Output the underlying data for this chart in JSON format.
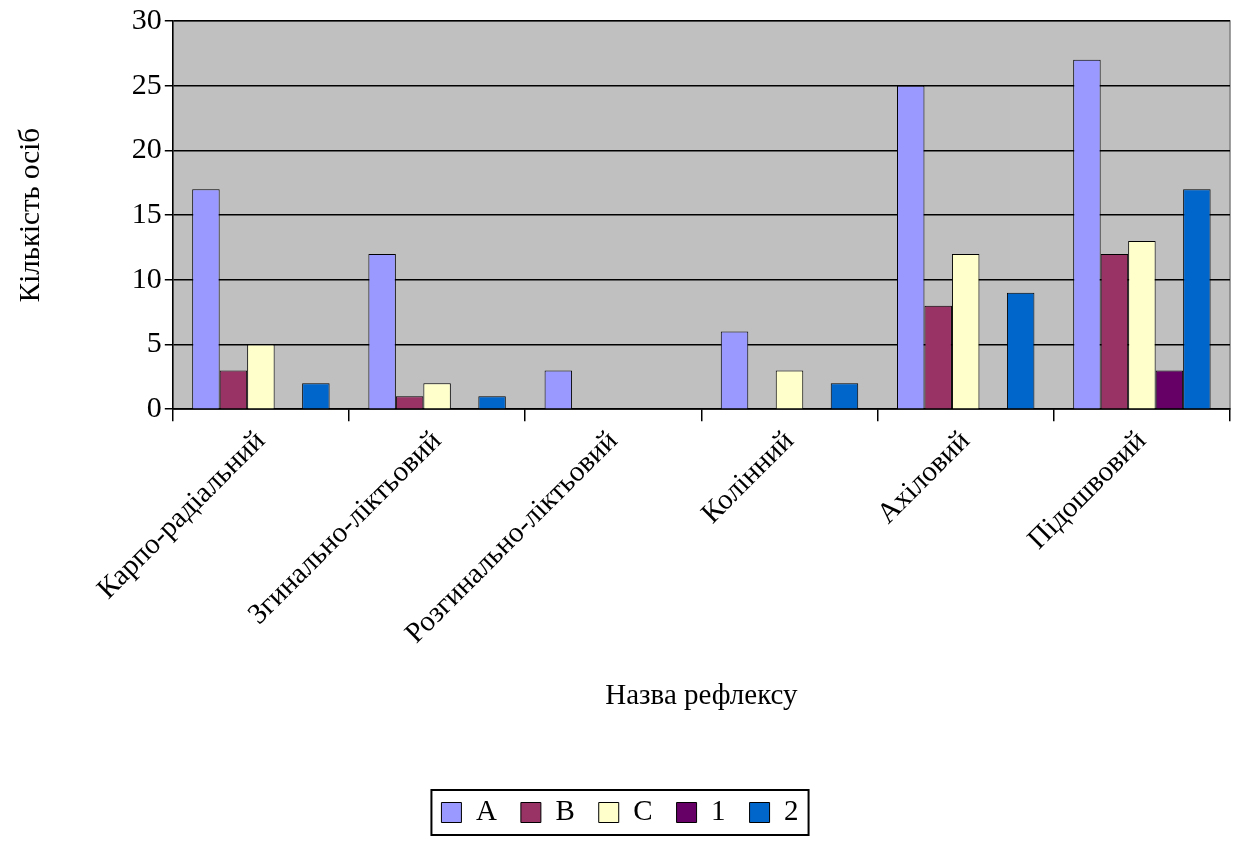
{
  "chart_data": {
    "type": "bar",
    "xlabel": "Назва рефлексу",
    "ylabel": "Кількість осіб",
    "categories": [
      "Карпо-радіальний",
      "Згинально-ліктьовий",
      "Розгинально-ліктьовий",
      "Колінний",
      "Ахіловий",
      "Підошвовий"
    ],
    "series": [
      {
        "name": "A",
        "color": "#9999ff",
        "values": [
          17,
          12,
          3,
          6,
          25,
          27
        ]
      },
      {
        "name": "B",
        "color": "#993366",
        "values": [
          3,
          1,
          0,
          0,
          8,
          12
        ]
      },
      {
        "name": "C",
        "color": "#ffffcc",
        "values": [
          5,
          2,
          0,
          3,
          12,
          13
        ]
      },
      {
        "name": "1",
        "color": "#660066",
        "values": [
          0,
          0,
          0,
          0,
          0,
          3
        ]
      },
      {
        "name": "2",
        "color": "#0066cc",
        "values": [
          2,
          1,
          0,
          2,
          9,
          17
        ]
      }
    ],
    "ylim": [
      0,
      30
    ],
    "yticks": [
      0,
      5,
      10,
      15,
      20,
      25,
      30
    ],
    "grid": "y",
    "legend": "bottom"
  }
}
